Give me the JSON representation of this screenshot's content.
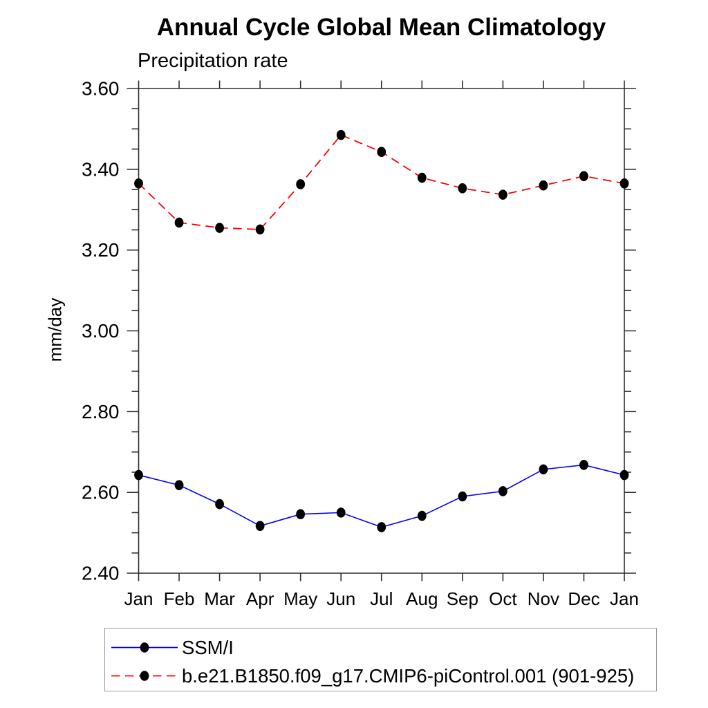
{
  "title": "Annual Cycle Global Mean Climatology",
  "subtitle": "Precipitation rate",
  "ylabel": "mm/day",
  "chart_data": {
    "type": "line",
    "categories": [
      "Jan",
      "Feb",
      "Mar",
      "Apr",
      "May",
      "Jun",
      "Jul",
      "Aug",
      "Sep",
      "Oct",
      "Nov",
      "Dec",
      "Jan"
    ],
    "series": [
      {
        "name": "SSM/I",
        "color": "#0000ff",
        "style": "solid",
        "values": [
          2.643,
          2.618,
          2.571,
          2.517,
          2.546,
          2.55,
          2.514,
          2.542,
          2.59,
          2.603,
          2.657,
          2.668,
          2.643
        ]
      },
      {
        "name": "b.e21.B1850.f09_g17.CMIP6-piControl.001 (901-925)",
        "color": "#ff0000",
        "style": "dashed",
        "values": [
          3.365,
          3.268,
          3.255,
          3.251,
          3.363,
          3.485,
          3.443,
          3.379,
          3.353,
          3.337,
          3.36,
          3.383,
          3.365
        ]
      }
    ],
    "marker_color": "#000000",
    "marker_shape": "filled-circle",
    "ylim": [
      2.4,
      3.6
    ],
    "y_major_step": 0.2,
    "y_minor_step": 0.05,
    "y_tick_labels": [
      "2.40",
      "2.60",
      "2.80",
      "3.00",
      "3.20",
      "3.40",
      "3.60"
    ],
    "grid": false,
    "legend_position": "bottom-left"
  }
}
